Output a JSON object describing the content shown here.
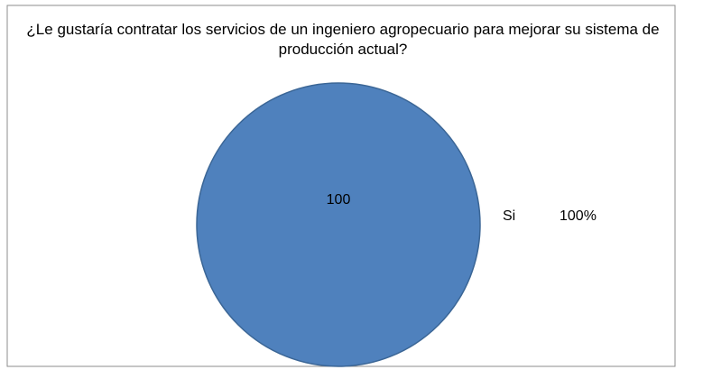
{
  "chart_data": {
    "type": "pie",
    "title": "¿Le gustaría contratar los servicios de un ingeniero agropecuario para mejorar su sistema de producción actual?",
    "categories": [
      "Si"
    ],
    "values": [
      100
    ],
    "percent_labels": [
      "100%"
    ],
    "colors": [
      "#4f81bd"
    ]
  }
}
